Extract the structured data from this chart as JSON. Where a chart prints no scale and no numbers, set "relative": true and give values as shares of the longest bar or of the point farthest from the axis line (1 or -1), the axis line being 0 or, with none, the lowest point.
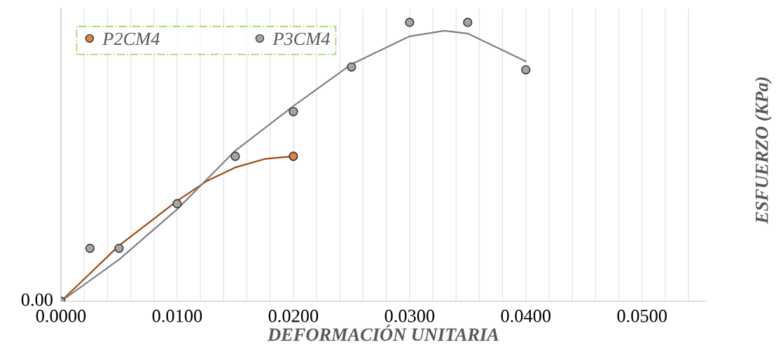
{
  "chart_data": {
    "type": "scatter",
    "relative": true,
    "xlabel": "DEFORMACIÓN UNITARIA",
    "ylabel": "ESFUERZO (KPa)",
    "xlim": [
      0,
      0.0555
    ],
    "xticks": [
      {
        "value": 0,
        "label": "0.0000"
      },
      {
        "value": 0.002,
        "label": null
      },
      {
        "value": 0.004,
        "label": null
      },
      {
        "value": 0.006,
        "label": null
      },
      {
        "value": 0.008,
        "label": null
      },
      {
        "value": 0.01,
        "label": "0.0100"
      },
      {
        "value": 0.012,
        "label": null
      },
      {
        "value": 0.014,
        "label": null
      },
      {
        "value": 0.016,
        "label": null
      },
      {
        "value": 0.018,
        "label": null
      },
      {
        "value": 0.02,
        "label": "0.0200"
      },
      {
        "value": 0.022,
        "label": null
      },
      {
        "value": 0.024,
        "label": null
      },
      {
        "value": 0.026,
        "label": null
      },
      {
        "value": 0.028,
        "label": null
      },
      {
        "value": 0.03,
        "label": "0.0300"
      },
      {
        "value": 0.032,
        "label": null
      },
      {
        "value": 0.034,
        "label": null
      },
      {
        "value": 0.036,
        "label": null
      },
      {
        "value": 0.038,
        "label": null
      },
      {
        "value": 0.04,
        "label": "0.0400"
      },
      {
        "value": 0.042,
        "label": null
      },
      {
        "value": 0.044,
        "label": null
      },
      {
        "value": 0.046,
        "label": null
      },
      {
        "value": 0.048,
        "label": null
      },
      {
        "value": 0.05,
        "label": "0.0500"
      },
      {
        "value": 0.052,
        "label": null
      },
      {
        "value": 0.054,
        "label": null
      }
    ],
    "annotations": [
      "0.00"
    ],
    "grid": true,
    "legend": "top",
    "marker": "circle",
    "series": [
      {
        "type": "line",
        "color": "#9e480e",
        "marker": "none",
        "x": [
          0,
          0.0025,
          0.005,
          0.0075,
          0.01,
          0.0125,
          0.015,
          0.0175,
          0.02
        ],
        "values": [
          0,
          0.1,
          0.2,
          0.28,
          0.36,
          0.43,
          0.48,
          0.51,
          0.52
        ]
      },
      {
        "type": "line",
        "color": "#808080",
        "marker": "none",
        "x": [
          0,
          0.005,
          0.01,
          0.015,
          0.02,
          0.025,
          0.03,
          0.033,
          0.035,
          0.04
        ],
        "values": [
          0,
          0.15,
          0.33,
          0.54,
          0.7,
          0.85,
          0.95,
          0.97,
          0.96,
          0.86
        ]
      },
      {
        "name": "P2CM4",
        "color": "#ed7d31",
        "x": [
          0.02
        ],
        "values": [
          0.52
        ]
      },
      {
        "name": "P3CM4",
        "color": "#a5a5a5",
        "x": [
          0,
          0.0025,
          0.005,
          0.01,
          0.015,
          0.02,
          0.025,
          0.03,
          0.035,
          0.04
        ],
        "values": [
          0,
          0.19,
          0.19,
          0.35,
          0.52,
          0.68,
          0.84,
          1,
          1,
          0.83
        ]
      }
    ]
  }
}
